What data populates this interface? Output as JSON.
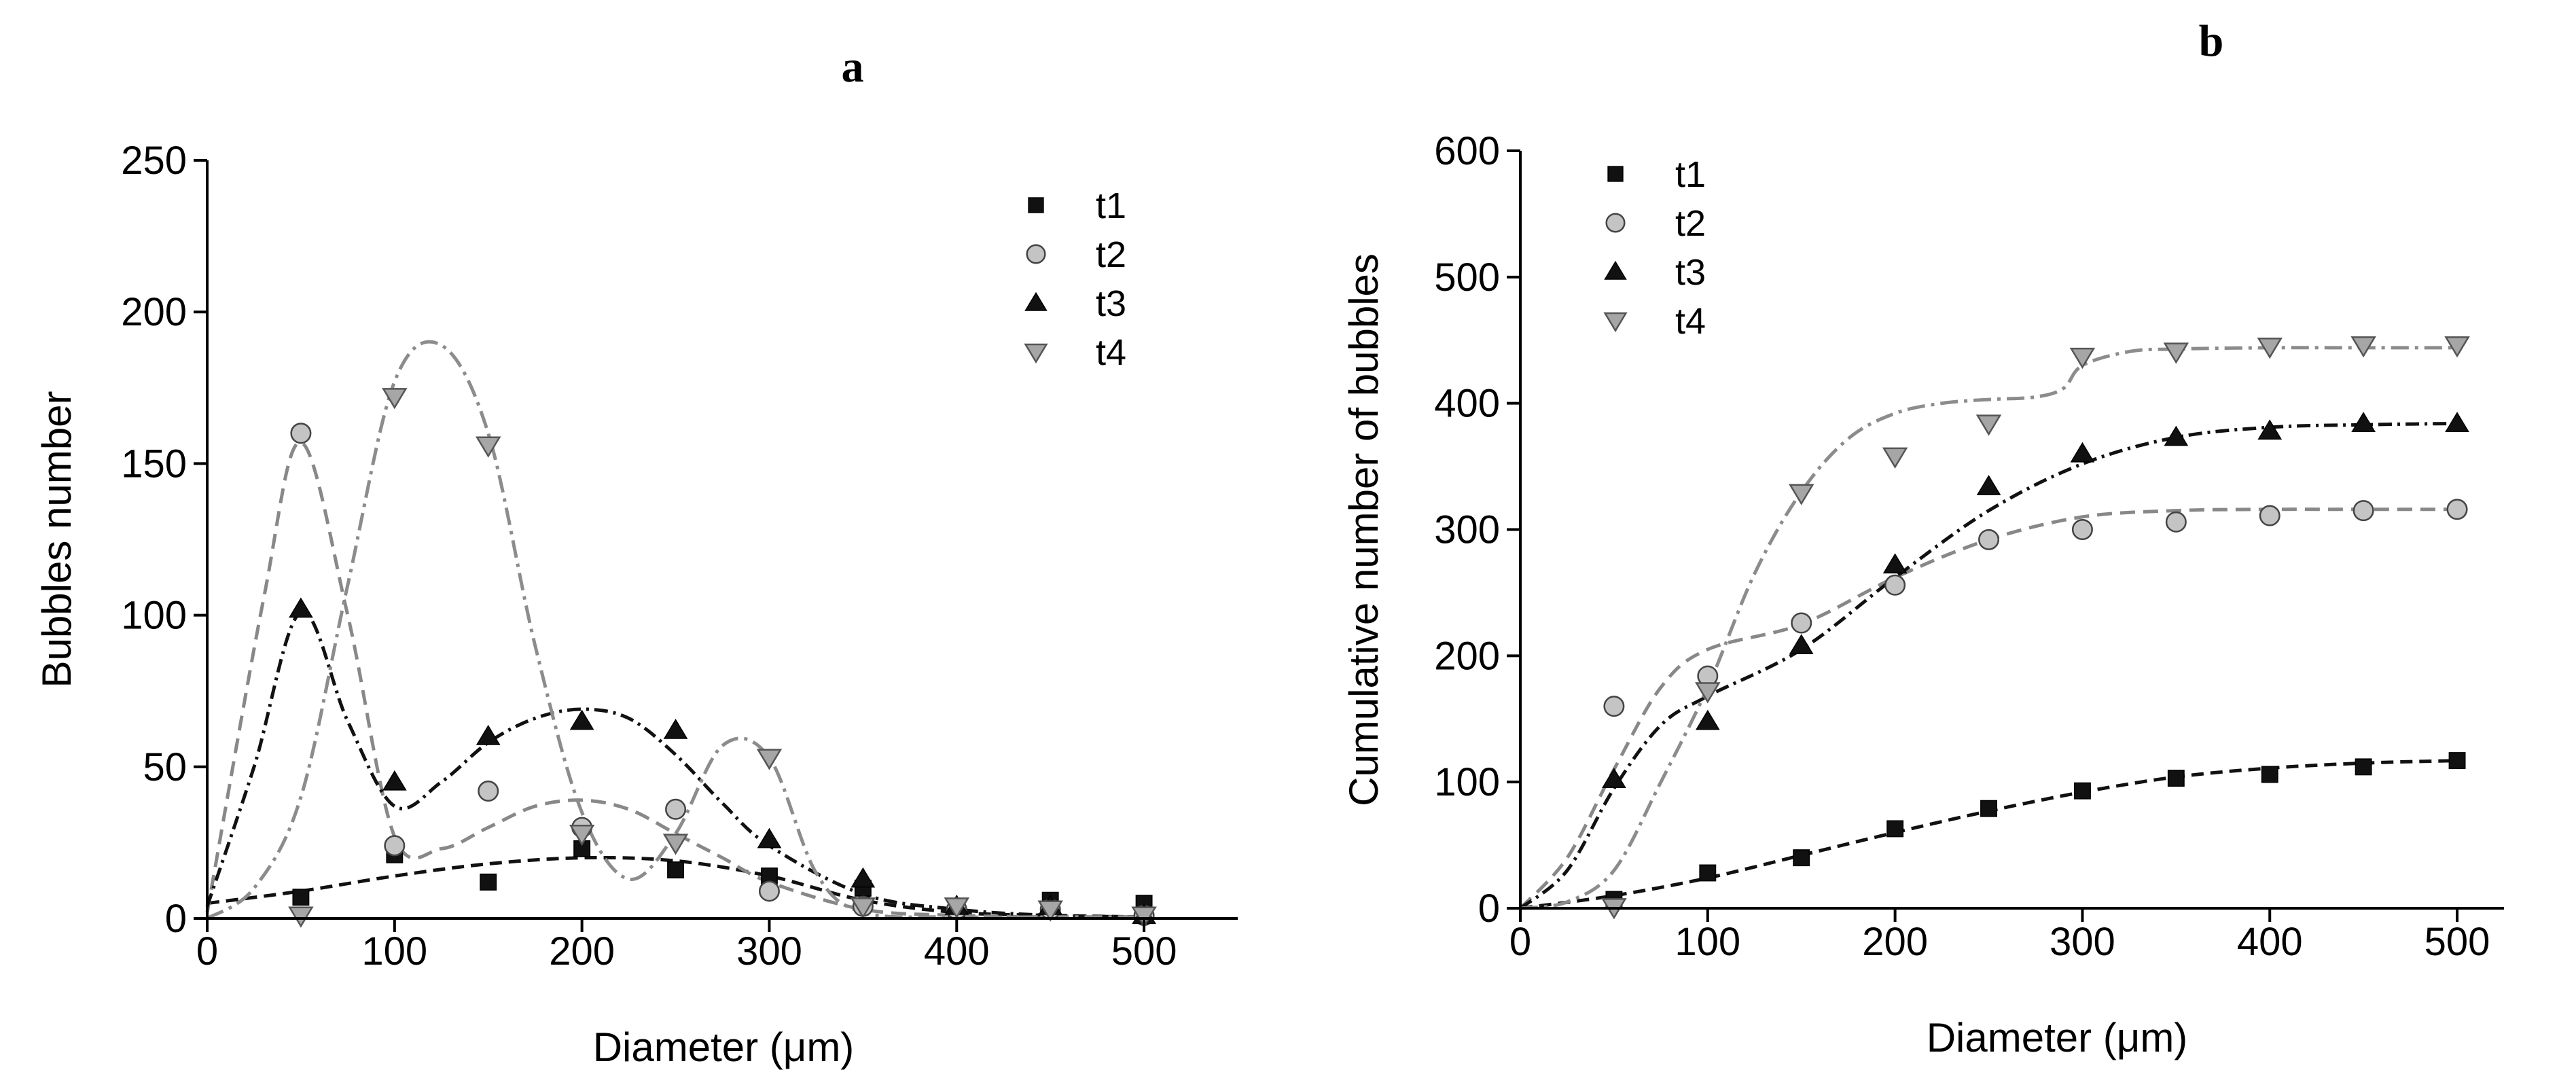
{
  "chart_data": [
    {
      "panel": "a",
      "type": "scatter",
      "title": "",
      "xlabel": "Diameter (μm)",
      "ylabel": "Bubbles number",
      "xlim": [
        0,
        550
      ],
      "ylim": [
        0,
        250
      ],
      "xticks": [
        0,
        100,
        200,
        300,
        400,
        500
      ],
      "yticks": [
        0,
        50,
        100,
        150,
        200,
        250
      ],
      "grid": false,
      "legend_position": "top-right",
      "series": [
        {
          "name": "t1",
          "marker": "square",
          "color": "#111111",
          "line_color": "#111111",
          "dash": "18,10",
          "x": [
            50,
            100,
            150,
            200,
            250,
            300,
            350,
            400,
            450,
            500
          ],
          "values": [
            7,
            21,
            12,
            23,
            16,
            14,
            10,
            3,
            6,
            5
          ],
          "fit_x": [
            0,
            50,
            100,
            150,
            200,
            250,
            300,
            350,
            400,
            450,
            500
          ],
          "fit_y": [
            5,
            9,
            14,
            18,
            20,
            19,
            14,
            6,
            2,
            1,
            0.5
          ]
        },
        {
          "name": "t2",
          "marker": "circle",
          "color": "#c4c4c4",
          "line_color": "#888888",
          "dash": "22,12",
          "x": [
            50,
            100,
            150,
            200,
            250,
            300,
            350,
            400,
            450,
            500
          ],
          "values": [
            160,
            24,
            42,
            30,
            36,
            9,
            4,
            3,
            3,
            1
          ],
          "fit_x": [
            0,
            30,
            50,
            75,
            100,
            125,
            150,
            175,
            200,
            225,
            250,
            275,
            300,
            350,
            400,
            450,
            500
          ],
          "fit_y": [
            2,
            105,
            157,
            100,
            27,
            23,
            30,
            37,
            39,
            36,
            28,
            20,
            12,
            3,
            1,
            0.5,
            0.5
          ]
        },
        {
          "name": "t3",
          "marker": "triangle-up",
          "color": "#111111",
          "line_color": "#111111",
          "dash": "20,8,4,8",
          "x": [
            50,
            100,
            150,
            200,
            250,
            300,
            350,
            400,
            450,
            500
          ],
          "values": [
            102,
            45,
            60,
            65,
            62,
            26,
            13,
            4,
            4,
            1
          ],
          "fit_x": [
            0,
            25,
            50,
            75,
            100,
            125,
            150,
            175,
            200,
            225,
            250,
            275,
            300,
            350,
            400,
            450,
            500
          ],
          "fit_y": [
            4,
            50,
            101,
            65,
            37,
            45,
            58,
            66,
            69,
            66,
            54,
            38,
            24,
            8,
            3,
            1,
            0.5
          ]
        },
        {
          "name": "t4",
          "marker": "triangle-down",
          "color": "#a6a6a6",
          "line_color": "#8c8c8c",
          "dash": "26,9,5,9",
          "x": [
            50,
            100,
            150,
            200,
            250,
            300,
            350,
            400,
            450,
            500
          ],
          "values": [
            1,
            172,
            156,
            28,
            25,
            53,
            4,
            4,
            3,
            1
          ],
          "fit_x": [
            0,
            25,
            50,
            75,
            100,
            125,
            150,
            175,
            200,
            225,
            250,
            275,
            300,
            325,
            350,
            400,
            450,
            500
          ],
          "fit_y": [
            0,
            10,
            40,
            110,
            177,
            189,
            160,
            90,
            35,
            13,
            28,
            57,
            53,
            15,
            2,
            0.5,
            0.5,
            0.5
          ]
        }
      ]
    },
    {
      "panel": "b",
      "type": "scatter",
      "title": "",
      "xlabel": "Diameter (μm)",
      "ylabel": "Cumulative number of bubbles",
      "xlim": [
        0,
        525
      ],
      "ylim": [
        0,
        600
      ],
      "xticks": [
        0,
        100,
        200,
        300,
        400,
        500
      ],
      "yticks": [
        0,
        100,
        200,
        300,
        400,
        500,
        600
      ],
      "grid": false,
      "legend_position": "top-left",
      "series": [
        {
          "name": "t1",
          "marker": "square",
          "color": "#111111",
          "line_color": "#111111",
          "dash": "18,10",
          "x": [
            50,
            100,
            150,
            200,
            250,
            300,
            350,
            400,
            450,
            500
          ],
          "values": [
            7,
            28,
            40,
            63,
            79,
            93,
            103,
            106,
            112,
            117
          ],
          "fit_x": [
            0,
            50,
            100,
            150,
            200,
            250,
            300,
            350,
            400,
            450,
            500
          ],
          "fit_y": [
            0,
            10,
            24,
            42,
            60,
            77,
            92,
            104,
            111,
            115,
            117
          ]
        },
        {
          "name": "t2",
          "marker": "circle",
          "color": "#c4c4c4",
          "line_color": "#888888",
          "dash": "22,12",
          "x": [
            50,
            100,
            150,
            200,
            250,
            300,
            350,
            400,
            450,
            500
          ],
          "values": [
            160,
            184,
            226,
            256,
            292,
            300,
            306,
            311,
            315,
            316
          ],
          "fit_x": [
            0,
            25,
            50,
            75,
            100,
            150,
            200,
            250,
            300,
            350,
            400,
            450,
            500
          ],
          "fit_y": [
            0,
            40,
            110,
            175,
            205,
            225,
            262,
            292,
            310,
            315,
            316,
            316,
            316
          ]
        },
        {
          "name": "t3",
          "marker": "triangle-up",
          "color": "#111111",
          "line_color": "#111111",
          "dash": "20,8,4,8",
          "x": [
            50,
            100,
            150,
            200,
            250,
            300,
            350,
            400,
            450,
            500
          ],
          "values": [
            102,
            148,
            208,
            272,
            334,
            360,
            373,
            378,
            384,
            384
          ],
          "fit_x": [
            0,
            25,
            50,
            75,
            100,
            150,
            200,
            250,
            300,
            350,
            400,
            450,
            500
          ],
          "fit_y": [
            0,
            30,
            95,
            145,
            168,
            205,
            262,
            315,
            352,
            373,
            381,
            383,
            384
          ]
        },
        {
          "name": "t4",
          "marker": "triangle-down",
          "color": "#a6a6a6",
          "line_color": "#8c8c8c",
          "dash": "26,9,5,9",
          "x": [
            50,
            100,
            150,
            200,
            250,
            300,
            350,
            400,
            450,
            500
          ],
          "values": [
            1,
            172,
            329,
            358,
            384,
            437,
            441,
            445,
            446,
            446
          ],
          "fit_x": [
            0,
            25,
            50,
            75,
            100,
            125,
            150,
            175,
            200,
            225,
            250,
            275,
            290,
            300,
            325,
            350,
            400,
            450,
            500
          ],
          "fit_y": [
            0,
            5,
            30,
            100,
            175,
            265,
            330,
            372,
            392,
            400,
            403,
            405,
            412,
            430,
            441,
            443,
            444,
            444,
            444
          ]
        }
      ]
    }
  ]
}
